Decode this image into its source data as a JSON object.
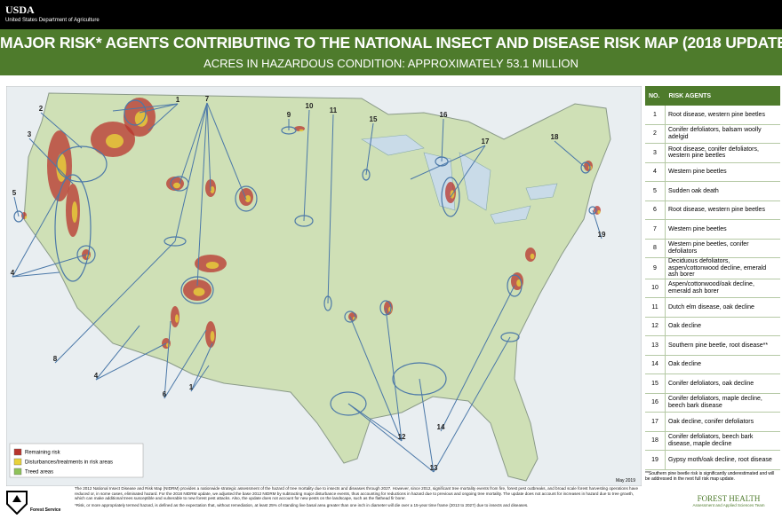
{
  "header": {
    "agency_short": "USDA",
    "agency": "United States Department of Agriculture",
    "title": "MAJOR RISK* AGENTS CONTRIBUTING TO THE NATIONAL INSECT AND DISEASE RISK MAP (2018 UPDATE)",
    "subtitle": "ACRES IN HAZARDOUS CONDITION: APPROXIMATELY 53.1 MILLION"
  },
  "map": {
    "labels": [
      "1",
      "2",
      "3",
      "5",
      "4",
      "7",
      "9",
      "10",
      "11",
      "15",
      "16",
      "17",
      "18",
      "19",
      "8",
      "4",
      "6",
      "1",
      "12",
      "14",
      "13"
    ],
    "legend": [
      "Remaining risk",
      "Disturbances/treatments in risk areas",
      "Treed areas"
    ],
    "date": "May 2019"
  },
  "table": {
    "headers": [
      "NO.",
      "RISK AGENTS"
    ],
    "rows": [
      [
        "1",
        "Root disease, western pine beetles"
      ],
      [
        "2",
        "Conifer defoliators, balsam woolly adelgid"
      ],
      [
        "3",
        "Root disease, conifer defoliators, western pine beetles"
      ],
      [
        "4",
        "Western pine beetles"
      ],
      [
        "5",
        "Sudden oak death"
      ],
      [
        "6",
        "Root disease, western pine beetles"
      ],
      [
        "7",
        "Western pine beetles"
      ],
      [
        "8",
        "Western pine beetles, conifer defoliators"
      ],
      [
        "9",
        "Deciduous defoliators, aspen/cottonwood decline, emerald ash borer"
      ],
      [
        "10",
        "Aspen/cottonwood/oak decline, emerald ash borer"
      ],
      [
        "11",
        "Dutch elm disease, oak decline"
      ],
      [
        "12",
        "Oak decline"
      ],
      [
        "13",
        "Southern pine beetle, root disease**"
      ],
      [
        "14",
        "Oak decline"
      ],
      [
        "15",
        "Conifer defoliators, oak decline"
      ],
      [
        "16",
        "Conifer defoliators, maple decline, beech bark disease"
      ],
      [
        "17",
        "Oak decline, conifer defoliators"
      ],
      [
        "18",
        "Conifer defoliators, beech bark disease, maple decline"
      ],
      [
        "19",
        "Gypsy moth/oak decline, root disease"
      ]
    ],
    "footnote": "**Southern pine beetle risk is significantly underestimated and will be addressed in the next full risk map update."
  },
  "footer": {
    "paragraph": "The 2012 National Insect Disease and Risk Map (NIDRM) provides a nationwide strategic assessment of the hazard of tree mortality due to insects and diseases through 2027. However, since 2012, significant tree mortality events from fire, forest pest outbreaks, and broad scale forest harvesting operations have reduced or, in some cases, eliminated hazard. For the 2018 NIDRM update, we adjusted the base 2012 NIDRM by subtracting major disturbance events, thus accounting for reductions in hazard due to previous and ongoing tree mortality. The update does not account for increases in hazard due to tree growth, which can make additional trees susceptible and vulnerable to new forest pest attacks. Also, the update does not account for new pests on the landscape, such as the flathead fir borer.",
    "definition": "*Risk, or more appropriately termed hazard, is defined as the expectation that, without remediation, at least 25% of standing live basal area greater than one inch in diameter will die over a 15-year time frame (2013 to 2027) due to insects and diseases.",
    "agency_branch": "Forest Service",
    "team_title": "FOREST HEALTH",
    "team": "Assessment and Applied Sciences Team"
  }
}
